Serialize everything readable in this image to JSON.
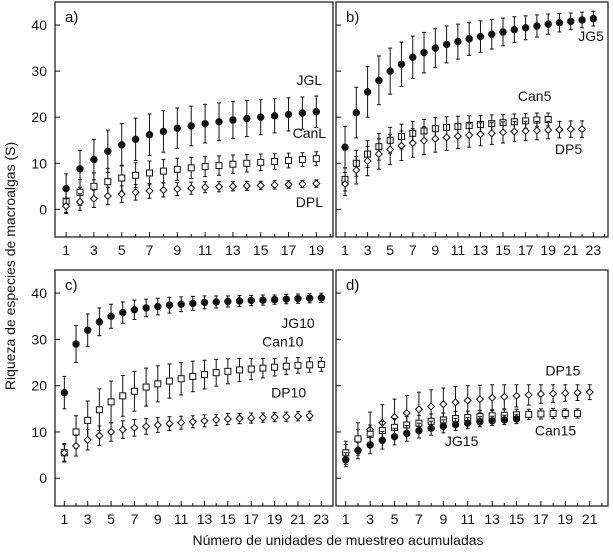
{
  "figure": {
    "ylabel": "Riqueza de especies de macroalgas (S)",
    "xlabel": "Número de unidades de muestreo acumuladas"
  },
  "chart_data": [
    {
      "id": "a",
      "panel_label": "a)",
      "type": "scatter",
      "x_ticks": [
        1,
        3,
        5,
        7,
        9,
        11,
        13,
        15,
        17,
        19
      ],
      "y_ticks": [
        0,
        10,
        20,
        30,
        40
      ],
      "xlim": [
        0.2,
        20.2
      ],
      "ylim": [
        -6,
        45
      ],
      "series": [
        {
          "name": "JGL",
          "marker": "filled-circle",
          "x": [
            1,
            2,
            3,
            4,
            5,
            6,
            7,
            8,
            9,
            10,
            11,
            12,
            13,
            14,
            15,
            16,
            17,
            18,
            19
          ],
          "y": [
            4.5,
            8.8,
            10.8,
            12.6,
            14,
            15.2,
            16.2,
            16.9,
            17.6,
            18.1,
            18.6,
            19,
            19.4,
            19.7,
            20,
            20.3,
            20.6,
            20.9,
            21.2
          ],
          "err": [
            3.2,
            4,
            4.4,
            4.6,
            4.6,
            4.6,
            4.5,
            4.5,
            4.4,
            4.3,
            4.2,
            4.1,
            4,
            3.9,
            3.8,
            3.7,
            3.6,
            3.5,
            3.4
          ]
        },
        {
          "name": "CanL",
          "marker": "open-square",
          "x": [
            1,
            2,
            3,
            4,
            5,
            6,
            7,
            8,
            9,
            10,
            11,
            12,
            13,
            14,
            15,
            16,
            17,
            18,
            19
          ],
          "y": [
            1.8,
            3.7,
            5,
            6,
            6.8,
            7.4,
            7.9,
            8.3,
            8.7,
            9,
            9.3,
            9.5,
            9.8,
            10,
            10.2,
            10.4,
            10.6,
            10.8,
            11
          ],
          "err": [
            2.5,
            2.8,
            2.9,
            2.9,
            2.8,
            2.7,
            2.6,
            2.5,
            2.4,
            2.3,
            2.2,
            2.1,
            2,
            1.9,
            1.8,
            1.7,
            1.6,
            1.5,
            1.5
          ]
        },
        {
          "name": "DPL",
          "marker": "open-diamond",
          "x": [
            1,
            2,
            3,
            4,
            5,
            6,
            7,
            8,
            9,
            10,
            11,
            12,
            13,
            14,
            15,
            16,
            17,
            18,
            19
          ],
          "y": [
            0.7,
            1.6,
            2.3,
            2.9,
            3.3,
            3.7,
            4,
            4.2,
            4.4,
            4.6,
            4.8,
            4.9,
            5,
            5.1,
            5.2,
            5.3,
            5.4,
            5.5,
            5.6
          ],
          "err": [
            1.6,
            1.8,
            1.9,
            1.9,
            1.8,
            1.7,
            1.6,
            1.5,
            1.4,
            1.3,
            1.2,
            1.1,
            1,
            1,
            0.9,
            0.9,
            0.8,
            0.8,
            0.8
          ]
        }
      ],
      "labels": [
        {
          "series": "JGL",
          "text": "JGL",
          "at": [
            18.5,
            27
          ]
        },
        {
          "series": "CanL",
          "text": "CanL",
          "at": [
            18.5,
            15.5
          ]
        },
        {
          "series": "DPL",
          "text": "DPL",
          "at": [
            18.5,
            0.5
          ]
        }
      ]
    },
    {
      "id": "b",
      "panel_label": "b)",
      "type": "scatter",
      "x_ticks": [
        1,
        3,
        5,
        7,
        9,
        11,
        13,
        15,
        17,
        19,
        21,
        23
      ],
      "y_ticks": [
        0,
        10,
        20,
        30,
        40
      ],
      "xlim": [
        0.2,
        24.3
      ],
      "ylim": [
        -6,
        45
      ],
      "series": [
        {
          "name": "JG5",
          "marker": "filled-circle",
          "x": [
            1,
            2,
            3,
            4,
            5,
            6,
            7,
            8,
            9,
            10,
            11,
            12,
            13,
            14,
            15,
            16,
            17,
            18,
            19,
            20,
            21,
            22,
            23
          ],
          "y": [
            13.5,
            21,
            25.5,
            28,
            30,
            31.5,
            33,
            34,
            35,
            35.8,
            36.4,
            37,
            37.5,
            38,
            38.5,
            39,
            39.4,
            39.8,
            40.2,
            40.5,
            40.8,
            41.1,
            41.4
          ],
          "err": [
            4.5,
            5.5,
            5.5,
            5.3,
            5,
            4.8,
            4.6,
            4.4,
            4.2,
            4,
            3.8,
            3.6,
            3.4,
            3.2,
            3,
            2.8,
            2.6,
            2.4,
            2.2,
            2,
            1.8,
            1.7,
            1.6
          ]
        },
        {
          "name": "Can5",
          "marker": "open-square",
          "x": [
            1,
            2,
            3,
            4,
            5,
            6,
            7,
            8,
            9,
            10,
            11,
            12,
            13,
            14,
            15,
            16,
            17,
            18,
            19
          ],
          "y": [
            6.5,
            10,
            12,
            13.6,
            15,
            15.8,
            16.5,
            17,
            17.5,
            17.8,
            18,
            18.2,
            18.4,
            18.6,
            18.8,
            19,
            19.2,
            19.4,
            19.5
          ],
          "err": [
            2.5,
            2.8,
            2.9,
            2.9,
            2.8,
            2.7,
            2.6,
            2.5,
            2.4,
            2.3,
            2.2,
            2.1,
            2,
            1.9,
            1.8,
            1.7,
            1.6,
            1.5,
            1.4
          ]
        },
        {
          "name": "DP5",
          "marker": "open-diamond",
          "x": [
            1,
            2,
            3,
            4,
            5,
            6,
            7,
            8,
            9,
            10,
            11,
            12,
            13,
            14,
            15,
            16,
            17,
            18,
            19,
            20,
            21,
            22
          ],
          "y": [
            5.5,
            8.5,
            10.5,
            12,
            13,
            13.8,
            14.4,
            14.9,
            15.3,
            15.6,
            15.9,
            16.1,
            16.3,
            16.5,
            16.7,
            16.9,
            17,
            17.1,
            17.2,
            17.3,
            17.4,
            17.4
          ],
          "err": [
            2.5,
            3,
            3.2,
            3.3,
            3.3,
            3.2,
            3.1,
            3,
            2.9,
            2.8,
            2.7,
            2.6,
            2.5,
            2.4,
            2.3,
            2.2,
            2.1,
            2,
            1.9,
            1.8,
            1.8,
            1.8
          ]
        }
      ],
      "labels": [
        {
          "series": "JG5",
          "text": "JG5",
          "at": [
            22.8,
            36.5
          ]
        },
        {
          "series": "Can5",
          "text": "Can5",
          "at": [
            17.8,
            23.5
          ]
        },
        {
          "series": "DP5",
          "text": "DP5",
          "at": [
            20.8,
            12
          ]
        }
      ]
    },
    {
      "id": "c",
      "panel_label": "c)",
      "type": "scatter",
      "x_ticks": [
        1,
        3,
        5,
        7,
        9,
        11,
        13,
        15,
        17,
        19,
        21,
        23
      ],
      "y_ticks": [
        0,
        10,
        20,
        30,
        40
      ],
      "xlim": [
        0.2,
        24
      ],
      "ylim": [
        -6,
        45
      ],
      "series": [
        {
          "name": "JG10",
          "marker": "filled-circle",
          "x": [
            1,
            2,
            3,
            4,
            5,
            6,
            7,
            8,
            9,
            10,
            11,
            12,
            13,
            14,
            15,
            16,
            17,
            18,
            19,
            20,
            21,
            22,
            23
          ],
          "y": [
            18.5,
            29,
            32,
            33.8,
            35,
            35.8,
            36.4,
            36.8,
            37.1,
            37.4,
            37.6,
            37.8,
            38,
            38.1,
            38.2,
            38.3,
            38.4,
            38.5,
            38.6,
            38.7,
            38.8,
            38.9,
            39
          ],
          "err": [
            3.5,
            4,
            3.5,
            3,
            2.6,
            2.3,
            2.1,
            1.9,
            1.8,
            1.7,
            1.6,
            1.5,
            1.4,
            1.3,
            1.2,
            1.2,
            1.1,
            1.1,
            1,
            1,
            1,
            1,
            1
          ]
        },
        {
          "name": "Can10",
          "marker": "open-square",
          "x": [
            1,
            2,
            3,
            4,
            5,
            6,
            7,
            8,
            9,
            10,
            11,
            12,
            13,
            14,
            15,
            16,
            17,
            18,
            19,
            20,
            21,
            22,
            23
          ],
          "y": [
            5.5,
            10,
            12.5,
            14.8,
            16.5,
            17.8,
            18.8,
            19.7,
            20.4,
            21,
            21.5,
            22,
            22.4,
            22.8,
            23.1,
            23.4,
            23.6,
            23.8,
            24,
            24.2,
            24.4,
            24.5,
            24.6
          ],
          "err": [
            2,
            3.5,
            4.2,
            4.5,
            4.5,
            4.4,
            4.3,
            4.1,
            3.9,
            3.7,
            3.5,
            3.3,
            3.1,
            2.9,
            2.7,
            2.5,
            2.3,
            2.1,
            1.9,
            1.8,
            1.7,
            1.6,
            1.5
          ]
        },
        {
          "name": "DP10",
          "marker": "open-diamond",
          "x": [
            1,
            2,
            3,
            4,
            5,
            6,
            7,
            8,
            9,
            10,
            11,
            12,
            13,
            14,
            15,
            16,
            17,
            18,
            19,
            20,
            21,
            22
          ],
          "y": [
            5.5,
            7,
            8.3,
            9.2,
            10,
            10.5,
            10.9,
            11.2,
            11.5,
            11.8,
            12,
            12.2,
            12.4,
            12.6,
            12.8,
            12.9,
            13,
            13.1,
            13.2,
            13.3,
            13.4,
            13.5
          ],
          "err": [
            1.8,
            2.2,
            2.2,
            2.1,
            2,
            1.9,
            1.8,
            1.7,
            1.6,
            1.5,
            1.4,
            1.3,
            1.3,
            1.2,
            1.2,
            1.1,
            1.1,
            1,
            1,
            1,
            1,
            1
          ]
        }
      ],
      "labels": [
        {
          "series": "JG10",
          "text": "JG10",
          "at": [
            21,
            32.5
          ]
        },
        {
          "series": "Can10",
          "text": "Can10",
          "at": [
            19.7,
            28.5
          ]
        },
        {
          "series": "DP10",
          "text": "DP10",
          "at": [
            20.2,
            17.5
          ]
        }
      ]
    },
    {
      "id": "d",
      "panel_label": "d)",
      "type": "scatter",
      "x_ticks": [
        1,
        3,
        5,
        7,
        9,
        11,
        13,
        15,
        17,
        19,
        21
      ],
      "y_ticks": [
        0,
        10,
        20,
        30,
        40
      ],
      "xlim": [
        0.2,
        22.5
      ],
      "ylim": [
        -6,
        45
      ],
      "series": [
        {
          "name": "DP15",
          "marker": "open-diamond",
          "x": [
            1,
            2,
            3,
            4,
            5,
            6,
            7,
            8,
            9,
            10,
            11,
            12,
            13,
            14,
            15,
            16,
            17,
            18,
            19,
            20,
            21
          ],
          "y": [
            5.5,
            8.5,
            10.5,
            12,
            13.2,
            14.1,
            14.9,
            15.5,
            16,
            16.4,
            16.8,
            17.1,
            17.4,
            17.6,
            17.8,
            18,
            18.2,
            18.3,
            18.4,
            18.5,
            18.6
          ],
          "err": [
            2.5,
            3.5,
            3.8,
            3.9,
            3.9,
            3.8,
            3.7,
            3.6,
            3.5,
            3.4,
            3.2,
            3,
            2.8,
            2.6,
            2.4,
            2.2,
            2,
            1.9,
            1.8,
            1.7,
            1.6
          ]
        },
        {
          "name": "Can15",
          "marker": "open-square",
          "x": [
            1,
            2,
            3,
            4,
            5,
            6,
            7,
            8,
            9,
            10,
            11,
            12,
            13,
            14,
            15,
            16,
            17,
            18,
            19,
            20
          ],
          "y": [
            5.5,
            8.5,
            9.5,
            10.3,
            11,
            11.5,
            11.9,
            12.3,
            12.6,
            12.9,
            13.1,
            13.3,
            13.5,
            13.6,
            13.7,
            13.8,
            13.9,
            14,
            14,
            14
          ],
          "err": [
            1.8,
            2,
            2,
            2,
            1.9,
            1.8,
            1.7,
            1.6,
            1.5,
            1.5,
            1.4,
            1.3,
            1.3,
            1.2,
            1.2,
            1.1,
            1.1,
            1.1,
            1,
            1
          ]
        },
        {
          "name": "JG15",
          "marker": "filled-circle",
          "x": [
            1,
            2,
            3,
            4,
            5,
            6,
            7,
            8,
            9,
            10,
            11,
            12,
            13,
            14,
            15
          ],
          "y": [
            4,
            6,
            7.2,
            8.2,
            9,
            9.7,
            10.3,
            10.8,
            11.2,
            11.6,
            11.9,
            12.2,
            12.4,
            12.6,
            12.8
          ],
          "err": [
            1.5,
            1.8,
            1.9,
            1.9,
            1.8,
            1.7,
            1.6,
            1.5,
            1.4,
            1.3,
            1.2,
            1.1,
            1,
            1,
            1
          ]
        }
      ],
      "labels": [
        {
          "series": "DP15",
          "text": "DP15",
          "at": [
            18.8,
            22.2
          ]
        },
        {
          "series": "Can15",
          "text": "Can15",
          "at": [
            18.2,
            9.2
          ]
        },
        {
          "series": "JG15",
          "text": "JG15",
          "at": [
            10.5,
            7
          ]
        }
      ]
    }
  ]
}
